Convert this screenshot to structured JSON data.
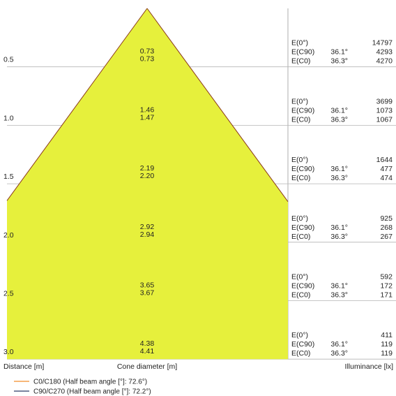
{
  "chart_data": {
    "type": "cone-diagram",
    "axes": {
      "distance_label": "Distance [m]",
      "cone_label": "Cone diameter [m]",
      "illuminance_label": "Illuminance [lx]"
    },
    "rows": [
      {
        "distance": "0.5",
        "cone_c0": "0.73",
        "cone_c90": "0.73",
        "illum": [
          {
            "name": "E(0°)",
            "angle": "",
            "value": "14797"
          },
          {
            "name": "E(C90)",
            "angle": "36.1°",
            "value": "4293"
          },
          {
            "name": "E(C0)",
            "angle": "36.3°",
            "value": "4270"
          }
        ]
      },
      {
        "distance": "1.0",
        "cone_c0": "1.46",
        "cone_c90": "1.47",
        "illum": [
          {
            "name": "E(0°)",
            "angle": "",
            "value": "3699"
          },
          {
            "name": "E(C90)",
            "angle": "36.1°",
            "value": "1073"
          },
          {
            "name": "E(C0)",
            "angle": "36.3°",
            "value": "1067"
          }
        ]
      },
      {
        "distance": "1.5",
        "cone_c0": "2.19",
        "cone_c90": "2.20",
        "illum": [
          {
            "name": "E(0°)",
            "angle": "",
            "value": "1644"
          },
          {
            "name": "E(C90)",
            "angle": "36.1°",
            "value": "477"
          },
          {
            "name": "E(C0)",
            "angle": "36.3°",
            "value": "474"
          }
        ]
      },
      {
        "distance": "2.0",
        "cone_c0": "2.92",
        "cone_c90": "2.94",
        "illum": [
          {
            "name": "E(0°)",
            "angle": "",
            "value": "925"
          },
          {
            "name": "E(C90)",
            "angle": "36.1°",
            "value": "268"
          },
          {
            "name": "E(C0)",
            "angle": "36.3°",
            "value": "267"
          }
        ]
      },
      {
        "distance": "2.5",
        "cone_c0": "3.65",
        "cone_c90": "3.67",
        "illum": [
          {
            "name": "E(0°)",
            "angle": "",
            "value": "592"
          },
          {
            "name": "E(C90)",
            "angle": "36.1°",
            "value": "172"
          },
          {
            "name": "E(C0)",
            "angle": "36.3°",
            "value": "171"
          }
        ]
      },
      {
        "distance": "3.0",
        "cone_c0": "4.38",
        "cone_c90": "4.41",
        "illum": [
          {
            "name": "E(0°)",
            "angle": "",
            "value": "411"
          },
          {
            "name": "E(C90)",
            "angle": "36.1°",
            "value": "119"
          },
          {
            "name": "E(C0)",
            "angle": "36.3°",
            "value": "119"
          }
        ]
      }
    ],
    "legend": [
      {
        "label": "C0/C180 (Half beam angle [°]: 72.6°)",
        "color": "#f28c28"
      },
      {
        "label": "C90/C270 (Half beam angle [°]: 72.2°)",
        "color": "#2b3a67"
      }
    ],
    "half_beam_angles": {
      "c0_c180": 72.6,
      "c90_c270": 72.2
    },
    "cone_fill_color": "#e6f03c",
    "grid": true
  }
}
